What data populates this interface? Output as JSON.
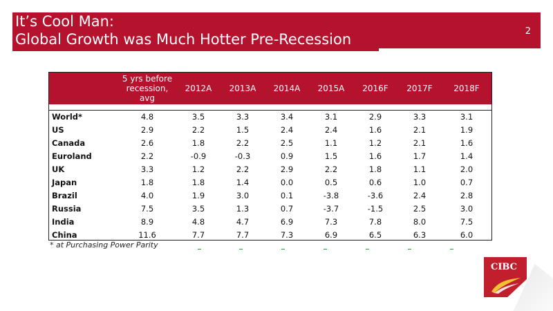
{
  "slide": {
    "title_line1": "It’s Cool Man:",
    "title_line2": "Global Growth was Much Hotter Pre-Recession",
    "page_number": "2"
  },
  "table": {
    "header": {
      "first_line1": "5 yrs before",
      "first_line2": "recession, avg",
      "years": [
        "2012A",
        "2013A",
        "2014A",
        "2015A",
        "2016F",
        "2017F",
        "2018F"
      ]
    },
    "rows": [
      {
        "country": "World*",
        "avg": "4.8",
        "values": [
          "3.5",
          "3.3",
          "3.4",
          "3.1",
          "2.9",
          "3.3",
          "3.1"
        ]
      },
      {
        "country": "US",
        "avg": "2.9",
        "values": [
          "2.2",
          "1.5",
          "2.4",
          "2.4",
          "1.6",
          "2.1",
          "1.9"
        ]
      },
      {
        "country": "Canada",
        "avg": "2.6",
        "values": [
          "1.8",
          "2.2",
          "2.5",
          "1.1",
          "1.2",
          "2.1",
          "1.6"
        ]
      },
      {
        "country": "Euroland",
        "avg": "2.2",
        "values": [
          "-0.9",
          "-0.3",
          "0.9",
          "1.5",
          "1.6",
          "1.7",
          "1.4"
        ]
      },
      {
        "country": "UK",
        "avg": "3.3",
        "values": [
          "1.2",
          "2.2",
          "2.9",
          "2.2",
          "1.8",
          "1.1",
          "2.0"
        ]
      },
      {
        "country": "Japan",
        "avg": "1.8",
        "values": [
          "1.8",
          "1.4",
          "0.0",
          "0.5",
          "0.6",
          "1.0",
          "0.7"
        ]
      },
      {
        "country": "Brazil",
        "avg": "4.0",
        "values": [
          "1.9",
          "3.0",
          "0.1",
          "-3.8",
          "-3.6",
          "2.4",
          "2.8"
        ]
      },
      {
        "country": "Russia",
        "avg": "7.5",
        "values": [
          "3.5",
          "1.3",
          "0.7",
          "-3.7",
          "-1.5",
          "2.5",
          "3.0"
        ]
      },
      {
        "country": "India",
        "avg": "8.9",
        "values": [
          "4.8",
          "4.7",
          "6.9",
          "7.3",
          "7.8",
          "8.0",
          "7.5"
        ]
      },
      {
        "country": "China",
        "avg": "11.6",
        "values": [
          "7.7",
          "7.7",
          "7.3",
          "6.9",
          "6.5",
          "6.3",
          "6.0"
        ]
      }
    ]
  },
  "footnote": "* at Purchasing Power Parity",
  "logo": {
    "text": "CIBC"
  },
  "colors": {
    "brand_red": "#b5122e",
    "dash_green": "#2e9b3a"
  }
}
